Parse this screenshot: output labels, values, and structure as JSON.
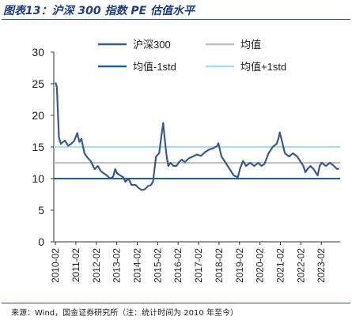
{
  "header": {
    "title": "图表13：沪深 300 指数 PE 估值水平"
  },
  "footer": {
    "source": "来源：Wind，国金证券研究所（注：统计时间为 2010 年至今）"
  },
  "colors": {
    "pe": "#3A5A8C",
    "mean": "#BFBFBF",
    "mean_minus": "#1A5DB0",
    "mean_plus": "#A8DCF0",
    "accent": "#1F3E7A"
  },
  "chart_data": {
    "type": "line",
    "title": "沪深 300 指数 PE 估值水平",
    "ylim": [
      0,
      30
    ],
    "yticks": [
      0,
      5,
      10,
      15,
      20,
      25,
      30
    ],
    "xticks": [
      "2010-02",
      "2011-02",
      "2012-02",
      "2013-02",
      "2014-02",
      "2015-02",
      "2016-02",
      "2017-02",
      "2018-02",
      "2019-02",
      "2020-02",
      "2021-02",
      "2022-02",
      "2023-02"
    ],
    "grid": false,
    "legend_position": "top",
    "series": [
      {
        "name": "沪深300",
        "color": "#3A5A8C",
        "x": [
          2010.08,
          2010.15,
          2010.25,
          2010.35,
          2010.45,
          2010.55,
          2010.7,
          2010.85,
          2011.0,
          2011.15,
          2011.25,
          2011.35,
          2011.5,
          2011.65,
          2011.8,
          2012.0,
          2012.15,
          2012.3,
          2012.45,
          2012.6,
          2012.75,
          2012.9,
          2013.0,
          2013.1,
          2013.25,
          2013.4,
          2013.5,
          2013.65,
          2013.8,
          2014.0,
          2014.15,
          2014.3,
          2014.45,
          2014.6,
          2014.75,
          2014.85,
          2015.0,
          2015.15,
          2015.25,
          2015.35,
          2015.45,
          2015.52,
          2015.6,
          2015.7,
          2015.85,
          2016.0,
          2016.1,
          2016.25,
          2016.4,
          2016.6,
          2016.8,
          2017.0,
          2017.2,
          2017.4,
          2017.6,
          2017.8,
          2018.0,
          2018.05,
          2018.2,
          2018.4,
          2018.6,
          2018.8,
          2019.0,
          2019.1,
          2019.25,
          2019.4,
          2019.6,
          2019.8,
          2020.0,
          2020.15,
          2020.3,
          2020.5,
          2020.7,
          2020.9,
          2021.0,
          2021.05,
          2021.15,
          2021.3,
          2021.5,
          2021.7,
          2021.9,
          2022.0,
          2022.2,
          2022.3,
          2022.4,
          2022.55,
          2022.7,
          2022.8,
          2022.9,
          2023.0,
          2023.1,
          2023.3,
          2023.5,
          2023.7,
          2023.85,
          2023.95
        ],
        "values": [
          25.2,
          24.5,
          16.5,
          15.5,
          15.8,
          16.0,
          15.2,
          15.5,
          16.0,
          17.2,
          15.8,
          16.3,
          14.0,
          13.3,
          12.8,
          11.5,
          12.0,
          11.2,
          10.8,
          10.5,
          10.0,
          10.3,
          11.5,
          10.8,
          10.5,
          10.2,
          9.5,
          10.0,
          9.0,
          9.0,
          8.5,
          8.2,
          8.3,
          8.8,
          9.0,
          9.5,
          13.5,
          14.0,
          16.5,
          18.8,
          15.5,
          13.5,
          12.0,
          12.5,
          12.0,
          12.0,
          12.5,
          13.0,
          12.6,
          13.2,
          13.5,
          13.8,
          13.6,
          14.2,
          14.6,
          14.8,
          15.2,
          15.6,
          13.5,
          12.5,
          11.5,
          10.5,
          10.2,
          11.5,
          12.8,
          12.0,
          12.5,
          12.0,
          12.5,
          12.0,
          12.3,
          14.0,
          15.0,
          15.5,
          16.5,
          17.3,
          16.0,
          14.0,
          13.5,
          14.0,
          13.5,
          13.0,
          12.0,
          11.0,
          11.5,
          12.0,
          11.5,
          11.0,
          10.5,
          12.0,
          12.5,
          12.0,
          12.5,
          12.0,
          11.5,
          11.6
        ]
      },
      {
        "name": "均值",
        "color": "#BFBFBF",
        "x": [
          2010.0,
          2024.0
        ],
        "values": [
          12.5,
          12.5
        ]
      },
      {
        "name": "均值-1std",
        "color": "#1A5DB0",
        "x": [
          2010.0,
          2024.0
        ],
        "values": [
          10.0,
          10.0
        ]
      },
      {
        "name": "均值+1std",
        "color": "#A8DCF0",
        "x": [
          2010.0,
          2024.0
        ],
        "values": [
          15.0,
          15.0
        ]
      }
    ]
  }
}
